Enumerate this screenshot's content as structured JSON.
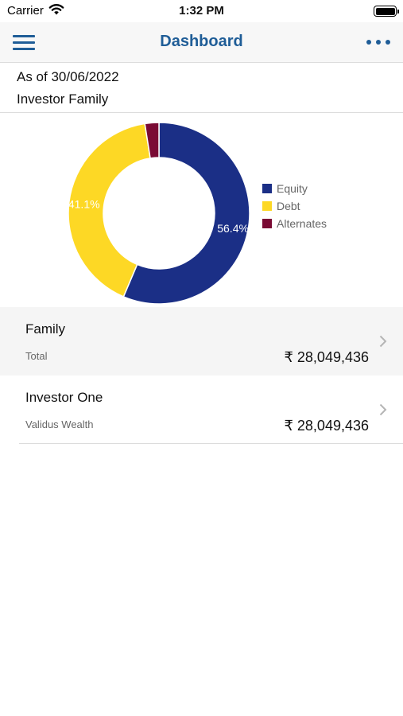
{
  "status_bar": {
    "carrier": "Carrier",
    "time": "1:32 PM"
  },
  "nav": {
    "title": "Dashboard",
    "menu_icon": "hamburger-menu-icon",
    "more_icon": "more-dots-icon"
  },
  "header": {
    "as_of": "As of 30/06/2022",
    "group": "Investor Family"
  },
  "chart_data": {
    "type": "pie",
    "style": "donut",
    "categories": [
      "Equity",
      "Debt",
      "Alternates"
    ],
    "values": [
      56.4,
      41.1,
      2.5
    ],
    "data_labels": [
      "56.4%",
      "41.1%",
      ""
    ],
    "colors": [
      "#1b2f86",
      "#fdd825",
      "#7a0a34"
    ],
    "legend_position": "right"
  },
  "rows": [
    {
      "name": "Family",
      "sub": "Total",
      "amount": "₹ 28,049,436"
    },
    {
      "name": "Investor One",
      "sub": "Validus Wealth",
      "amount": "₹ 28,049,436"
    }
  ]
}
